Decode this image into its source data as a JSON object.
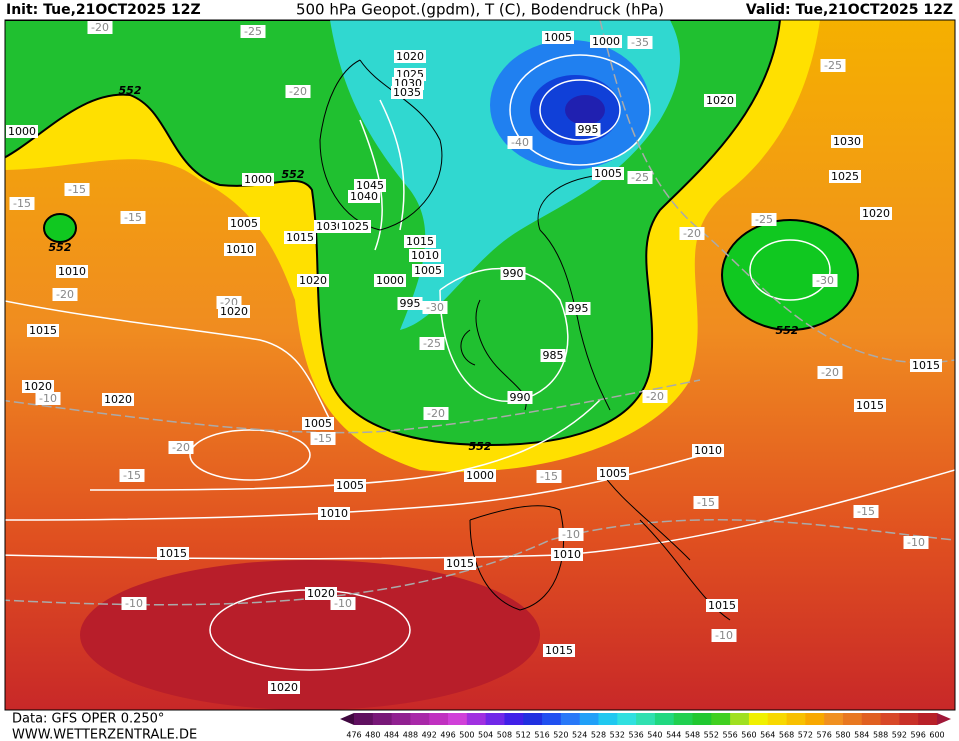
{
  "header": {
    "init": "Init: Tue,21OCT2025 12Z",
    "title": "500 hPa Geopot.(gpdm), T (C), Bodendruck (hPa)",
    "valid": "Valid: Tue,21OCT2025 12Z"
  },
  "footer": {
    "data": "Data: GFS OPER 0.250°",
    "site": "WWW.WETTERZENTRALE.DE"
  },
  "colorbar": {
    "labels": [
      476,
      480,
      484,
      488,
      492,
      496,
      500,
      504,
      508,
      512,
      516,
      520,
      524,
      528,
      532,
      536,
      540,
      544,
      548,
      552,
      556,
      560,
      564,
      568,
      572,
      576,
      580,
      584,
      588,
      592,
      596,
      600
    ],
    "colors": [
      "#601060",
      "#781878",
      "#902090",
      "#a828a8",
      "#c030c0",
      "#d040d8",
      "#a030e0",
      "#7028e8",
      "#4020e8",
      "#2030e0",
      "#2050f0",
      "#2878f8",
      "#20a0f8",
      "#20c8f0",
      "#30e0e0",
      "#30e0b0",
      "#20d880",
      "#20d050",
      "#20c830",
      "#40d020",
      "#a0e020",
      "#f0f000",
      "#f8d800",
      "#f8c000",
      "#f8a800",
      "#f09020",
      "#e87820",
      "#e06020",
      "#d84828",
      "#c83028",
      "#b82028"
    ],
    "arrow_colors": [
      "#400840",
      "#a01838"
    ]
  },
  "map": {
    "labels": [
      "1005",
      "1000",
      "-35",
      "1020",
      "1025",
      "1030",
      "1035",
      "995",
      "-40",
      "1020",
      "1030",
      "1025",
      "1020",
      "-25",
      "-20",
      "-25",
      "-20",
      "552",
      "1000",
      "552",
      "1000",
      "1045",
      "1040",
      "1005",
      "-25",
      "-15",
      "-15",
      "-15",
      "1005",
      "1030",
      "1025",
      "1015",
      "1015",
      "1010",
      "1005",
      "990",
      "1010",
      "552",
      "1010",
      "-20",
      "-20",
      "1020",
      "1020",
      "1000",
      "995",
      "-30",
      "995",
      "-25",
      "-20",
      "-30",
      "552",
      "1015",
      "-25",
      "985",
      "1015",
      "1020",
      "-10",
      "1020",
      "990",
      "-20",
      "-20",
      "-20",
      "1015",
      "1005",
      "-15",
      "552",
      "-20",
      "1010",
      "1000",
      "-15",
      "1005",
      "-15",
      "1005",
      "-15",
      "1010",
      "-15",
      "-10",
      "-10",
      "1015",
      "1015",
      "1010",
      "1020",
      "-10",
      "-10",
      "1015",
      "-10",
      "1015",
      "1020"
    ]
  }
}
